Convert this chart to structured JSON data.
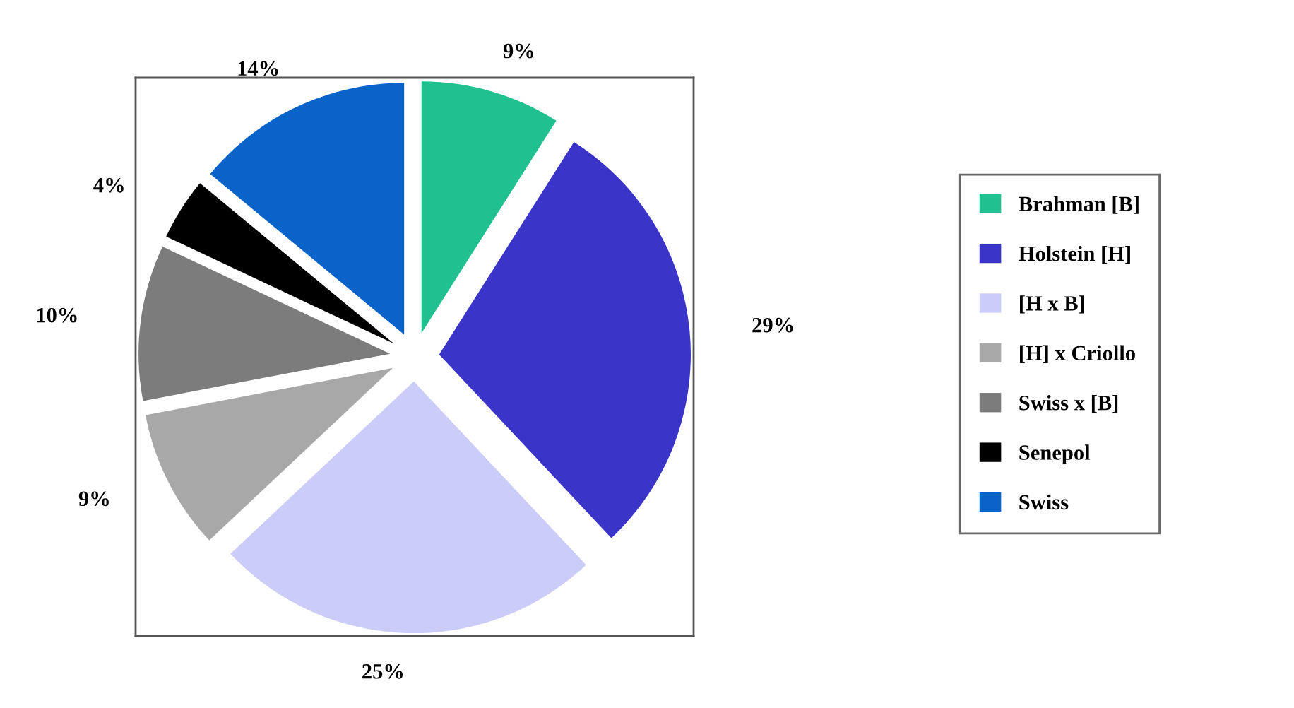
{
  "chart_data": {
    "type": "pie",
    "categories": [
      "Brahman [B]",
      "Holstein [H]",
      "[H x B]",
      "[H] x Criollo",
      "Swiss x [B]",
      "Senepol",
      "Swiss"
    ],
    "values": [
      9,
      29,
      25,
      9,
      10,
      4,
      14
    ],
    "value_labels": [
      "9%",
      "29%",
      "25%",
      "9%",
      "10%",
      "4%",
      "14%"
    ],
    "colors": [
      "#20c090",
      "#3a35c8",
      "#ccccf8",
      "#a8a8a8",
      "#7c7c7c",
      "#000000",
      "#0a63c8"
    ],
    "legend": "right"
  }
}
